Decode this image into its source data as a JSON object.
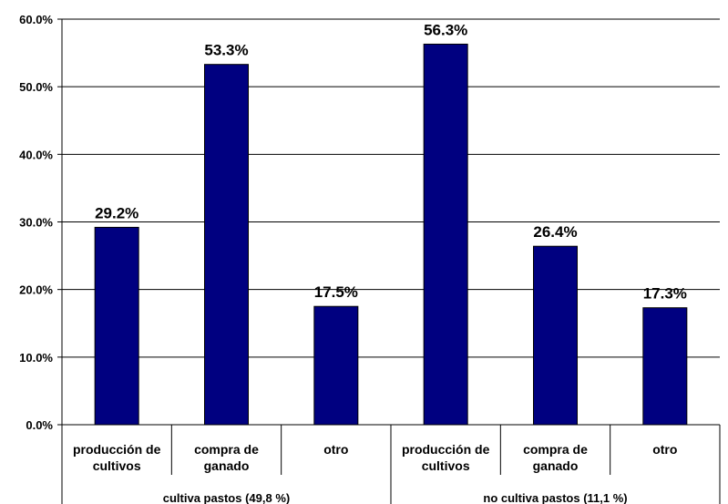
{
  "chart_data": {
    "type": "bar",
    "ylim": [
      0,
      60
    ],
    "y_ticks": [
      "0.0%",
      "10.0%",
      "20.0%",
      "30.0%",
      "40.0%",
      "50.0%",
      "60.0%"
    ],
    "grid": true,
    "bar_color": "#000080",
    "categories": [
      [
        "producción de",
        "cultivos"
      ],
      [
        "compra de",
        "ganado"
      ],
      [
        "otro"
      ],
      [
        "producción de",
        "cultivos"
      ],
      [
        "compra de",
        "ganado"
      ],
      [
        "otro"
      ]
    ],
    "groups": [
      "cultiva pastos (49,8 %)",
      "no cultiva pastos (11,1 %)"
    ],
    "values": [
      29.2,
      53.3,
      17.5,
      56.3,
      26.4,
      17.3
    ],
    "data_labels": [
      "29.2%",
      "53.3%",
      "17.5%",
      "56.3%",
      "26.4%",
      "17.3%"
    ]
  }
}
